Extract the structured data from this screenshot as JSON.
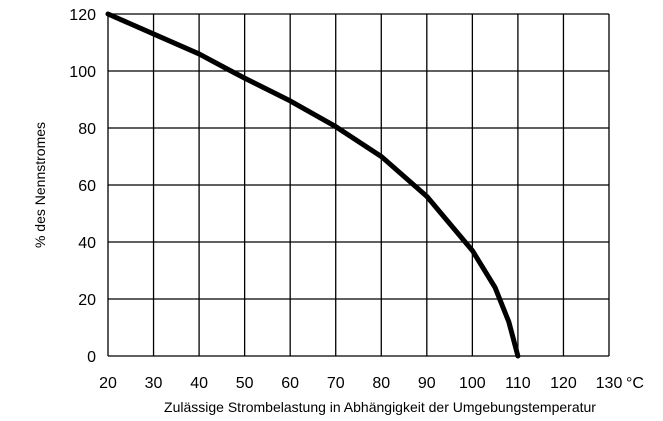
{
  "chart_data": {
    "type": "line",
    "xlabel": "Zulässige Strombelastung in Abhängigkeit der Umgebungstemperatur",
    "ylabel": "% des Nennstromes",
    "x_unit": "°C",
    "xlim": [
      20,
      130
    ],
    "ylim": [
      0,
      120
    ],
    "x_ticks": [
      20,
      30,
      40,
      50,
      60,
      70,
      80,
      90,
      100,
      110,
      120,
      130
    ],
    "y_ticks": [
      0,
      20,
      40,
      60,
      80,
      100,
      120
    ],
    "grid": true,
    "series": [
      {
        "x": [
          20,
          30,
          40,
          47,
          50,
          60,
          70,
          80,
          90,
          100,
          105,
          108,
          110
        ],
        "y": [
          120,
          113,
          106,
          100,
          97.5,
          89.5,
          80.5,
          70,
          56,
          37,
          24,
          12,
          0
        ]
      }
    ]
  }
}
